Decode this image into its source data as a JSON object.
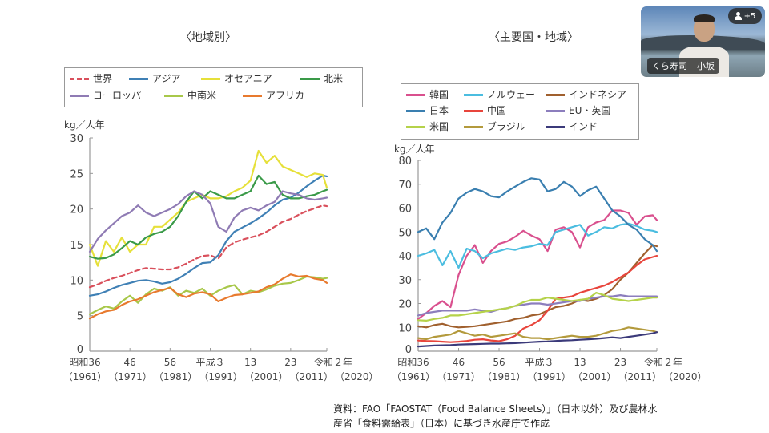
{
  "slide": {
    "source_note_line1": "資料：FAO「FAOSTAT（Food Balance Sheets）」（日本以外）及び農林水",
    "source_note_line2": "産省「食料需給表」（日本）に基づき水産庁で作成"
  },
  "video_call": {
    "participant_name_org": "くら寿司",
    "participant_name_person": "小坂",
    "participants_badge": "+5",
    "participants_icon": "user-icon"
  },
  "chart_data": [
    {
      "type": "line",
      "title": "〈地域別〉",
      "ylabel": "kg／人年",
      "xlabel": "",
      "ylim": [
        0,
        30
      ],
      "yticks": [
        0,
        5,
        10,
        15,
        20,
        25,
        30
      ],
      "xlim": [
        1961,
        2020
      ],
      "xticks": [
        {
          "year": 1961,
          "label1": "昭和36",
          "label2": "（1961）"
        },
        {
          "year": 1971,
          "label1": "46",
          "label2": "（1971）"
        },
        {
          "year": 1981,
          "label1": "56",
          "label2": "（1981）"
        },
        {
          "year": 1991,
          "label1": "平成３",
          "label2": "（1991）"
        },
        {
          "year": 2001,
          "label1": "13",
          "label2": "（2001）"
        },
        {
          "year": 2011,
          "label1": "23",
          "label2": "（2011）"
        },
        {
          "year": 2020,
          "label1": "令和２年",
          "label2": "（2020）"
        }
      ],
      "grid": false,
      "legend_position": "top",
      "x": [
        1961,
        1963,
        1965,
        1967,
        1969,
        1971,
        1973,
        1975,
        1977,
        1979,
        1981,
        1983,
        1985,
        1987,
        1989,
        1991,
        1993,
        1995,
        1997,
        1999,
        2001,
        2003,
        2005,
        2007,
        2009,
        2011,
        2013,
        2015,
        2017,
        2019,
        2020
      ],
      "series": [
        {
          "name": "世界",
          "color": "#d9505c",
          "dashed": true,
          "values": [
            9.0,
            9.4,
            9.9,
            10.3,
            10.6,
            11.0,
            11.4,
            11.7,
            11.6,
            11.5,
            11.5,
            11.8,
            12.3,
            12.9,
            13.4,
            13.5,
            13.0,
            14.6,
            15.3,
            15.7,
            16.0,
            16.3,
            16.8,
            17.5,
            18.2,
            18.6,
            19.2,
            19.7,
            20.1,
            20.5,
            20.4
          ]
        },
        {
          "name": "アジア",
          "color": "#3f80b5",
          "values": [
            7.8,
            8.0,
            8.4,
            8.9,
            9.3,
            9.6,
            9.9,
            10.0,
            9.8,
            9.5,
            9.7,
            10.2,
            10.9,
            11.7,
            12.4,
            12.5,
            13.5,
            15.5,
            16.8,
            17.4,
            18.0,
            18.7,
            19.5,
            20.5,
            21.3,
            21.6,
            22.3,
            23.2,
            24.0,
            24.7,
            24.6
          ]
        },
        {
          "name": "オセアニア",
          "color": "#e6e03a",
          "values": [
            15.0,
            12.0,
            15.5,
            14.0,
            16.0,
            14.0,
            15.0,
            15.0,
            17.5,
            17.5,
            18.5,
            19.5,
            21.0,
            21.5,
            22.0,
            21.5,
            21.5,
            21.8,
            22.5,
            23.0,
            24.0,
            28.2,
            26.5,
            27.5,
            26.0,
            25.5,
            25.0,
            24.5,
            25.0,
            24.8,
            23.0
          ]
        },
        {
          "name": "北米",
          "color": "#3a9a48",
          "values": [
            13.3,
            13.0,
            13.1,
            13.6,
            14.5,
            15.5,
            15.0,
            16.0,
            16.5,
            16.8,
            17.5,
            19.0,
            21.0,
            22.5,
            21.5,
            22.5,
            22.0,
            21.5,
            21.5,
            22.0,
            22.5,
            24.7,
            23.5,
            23.8,
            22.0,
            21.5,
            21.5,
            21.8,
            22.0,
            22.5,
            22.7
          ]
        },
        {
          "name": "ヨーロッパ",
          "color": "#8f7bb4",
          "values": [
            14.0,
            15.8,
            17.0,
            18.0,
            19.0,
            19.5,
            20.5,
            19.5,
            19.0,
            19.5,
            20.0,
            20.7,
            21.8,
            22.5,
            22.0,
            20.8,
            17.5,
            16.8,
            18.8,
            19.8,
            20.2,
            19.8,
            20.5,
            21.0,
            22.5,
            22.2,
            22.0,
            21.5,
            21.3,
            21.5,
            21.6
          ]
        },
        {
          "name": "中南米",
          "color": "#a8c84a",
          "values": [
            5.2,
            5.8,
            6.3,
            6.0,
            7.0,
            7.8,
            6.8,
            8.0,
            8.8,
            8.5,
            9.0,
            7.8,
            8.5,
            8.2,
            8.8,
            7.8,
            8.5,
            9.0,
            9.3,
            8.0,
            8.5,
            8.3,
            8.7,
            9.2,
            9.5,
            9.6,
            10.0,
            10.5,
            10.4,
            10.2,
            10.3
          ]
        },
        {
          "name": "アフリカ",
          "color": "#e87a2e",
          "values": [
            4.6,
            5.2,
            5.6,
            5.8,
            6.5,
            7.0,
            7.3,
            7.8,
            8.3,
            8.6,
            8.9,
            8.0,
            7.6,
            8.1,
            8.3,
            8.0,
            7.0,
            7.5,
            7.9,
            8.0,
            8.2,
            8.4,
            9.0,
            9.4,
            10.2,
            10.8,
            10.5,
            10.6,
            10.2,
            10.0,
            9.6
          ]
        }
      ]
    },
    {
      "type": "line",
      "title": "〈主要国・地域〉",
      "ylabel": "kg／人年",
      "xlabel": "",
      "ylim": [
        0,
        80
      ],
      "yticks": [
        0,
        10,
        20,
        30,
        40,
        50,
        60,
        70,
        80
      ],
      "xlim": [
        1961,
        2020
      ],
      "xticks": [
        {
          "year": 1961,
          "label1": "昭和36",
          "label2": "（1961）"
        },
        {
          "year": 1971,
          "label1": "46",
          "label2": "（1971）"
        },
        {
          "year": 1981,
          "label1": "56",
          "label2": "（1981）"
        },
        {
          "year": 1991,
          "label1": "平成３",
          "label2": "（1991）"
        },
        {
          "year": 2001,
          "label1": "13",
          "label2": "（2001）"
        },
        {
          "year": 2011,
          "label1": "23",
          "label2": "（2011）"
        },
        {
          "year": 2020,
          "label1": "令和２年",
          "label2": "（2020）"
        }
      ],
      "grid": false,
      "legend_position": "top",
      "x": [
        1961,
        1963,
        1965,
        1967,
        1969,
        1971,
        1973,
        1975,
        1977,
        1979,
        1981,
        1983,
        1985,
        1987,
        1989,
        1991,
        1993,
        1995,
        1997,
        1999,
        2001,
        2003,
        2005,
        2007,
        2009,
        2011,
        2013,
        2015,
        2017,
        2019,
        2020
      ],
      "series": [
        {
          "name": "韓国",
          "color": "#d9508e",
          "values": [
            13.5,
            16.0,
            19.0,
            21.0,
            18.5,
            32.0,
            40.0,
            44.5,
            37.0,
            42.0,
            45.0,
            46.0,
            48.0,
            50.5,
            48.5,
            47.0,
            42.0,
            51.0,
            52.0,
            50.0,
            43.5,
            52.0,
            54.0,
            55.0,
            59.0,
            59.0,
            58.0,
            53.0,
            56.5,
            57.0,
            55.0
          ]
        },
        {
          "name": "ノルウェー",
          "color": "#4bbde0",
          "values": [
            40.0,
            41.0,
            42.5,
            36.0,
            42.0,
            35.0,
            43.0,
            42.0,
            39.0,
            41.0,
            42.0,
            43.0,
            42.5,
            43.5,
            44.0,
            45.0,
            44.5,
            50.0,
            51.0,
            52.0,
            53.0,
            48.5,
            50.0,
            52.0,
            51.5,
            53.0,
            53.5,
            52.5,
            51.0,
            50.5,
            50.0
          ]
        },
        {
          "name": "インドネシア",
          "color": "#a0602e",
          "values": [
            10.5,
            10.0,
            11.0,
            11.5,
            10.5,
            10.0,
            10.2,
            10.5,
            11.0,
            11.5,
            12.0,
            12.5,
            13.5,
            14.0,
            15.0,
            15.5,
            17.0,
            18.5,
            19.0,
            20.0,
            21.5,
            21.0,
            22.0,
            23.5,
            26.0,
            30.0,
            33.0,
            37.0,
            41.0,
            44.5,
            44.0
          ]
        },
        {
          "name": "日本",
          "color": "#3a7fb0",
          "values": [
            50.0,
            51.5,
            47.0,
            54.0,
            58.0,
            64.0,
            66.5,
            68.0,
            67.0,
            65.0,
            64.5,
            67.0,
            69.0,
            71.0,
            72.5,
            72.0,
            67.0,
            68.0,
            71.0,
            69.0,
            65.0,
            67.5,
            69.0,
            64.0,
            59.0,
            56.5,
            53.0,
            51.0,
            47.0,
            44.5,
            42.0
          ]
        },
        {
          "name": "中国",
          "color": "#e8453c",
          "values": [
            4.5,
            4.3,
            4.2,
            4.0,
            3.8,
            4.0,
            4.3,
            4.8,
            5.0,
            4.5,
            4.2,
            5.0,
            6.5,
            9.5,
            11.0,
            13.0,
            17.0,
            22.0,
            22.5,
            23.0,
            24.5,
            25.5,
            26.5,
            27.5,
            29.0,
            31.0,
            33.0,
            36.0,
            38.5,
            39.5,
            40.0
          ]
        },
        {
          "name": "EU・英国",
          "color": "#8c7ebd",
          "values": [
            15.0,
            16.0,
            16.5,
            17.0,
            17.0,
            17.0,
            17.0,
            17.5,
            17.0,
            16.5,
            17.5,
            18.0,
            19.0,
            19.5,
            20.0,
            20.0,
            19.5,
            20.0,
            20.5,
            21.0,
            21.0,
            22.0,
            22.5,
            23.0,
            23.0,
            23.5,
            23.0,
            23.0,
            23.0,
            23.0,
            23.0
          ]
        },
        {
          "name": "米国",
          "color": "#b5d24a",
          "values": [
            13.0,
            12.8,
            13.5,
            14.0,
            15.0,
            15.0,
            15.5,
            16.0,
            16.5,
            17.0,
            17.5,
            18.0,
            19.0,
            20.5,
            21.5,
            21.5,
            22.5,
            22.0,
            21.5,
            21.0,
            21.5,
            22.0,
            24.5,
            23.5,
            22.0,
            21.5,
            21.0,
            21.5,
            22.0,
            22.5,
            22.5
          ]
        },
        {
          "name": "ブラジル",
          "color": "#b39a3c",
          "values": [
            5.5,
            5.0,
            6.0,
            6.5,
            7.0,
            8.5,
            7.5,
            6.5,
            7.0,
            6.0,
            6.5,
            7.0,
            7.5,
            6.0,
            5.5,
            5.5,
            5.0,
            5.5,
            6.0,
            6.5,
            6.0,
            6.0,
            6.5,
            7.5,
            8.5,
            9.0,
            10.0,
            9.5,
            9.0,
            8.5,
            8.0
          ]
        },
        {
          "name": "インド",
          "color": "#3b3a7a",
          "values": [
            2.0,
            2.2,
            2.4,
            2.5,
            2.6,
            2.8,
            2.9,
            3.0,
            3.1,
            3.2,
            3.2,
            3.3,
            3.4,
            3.6,
            3.8,
            4.0,
            4.1,
            4.3,
            4.5,
            4.6,
            4.8,
            5.0,
            5.2,
            5.5,
            5.8,
            5.5,
            6.0,
            6.5,
            7.0,
            7.5,
            8.0
          ]
        }
      ]
    }
  ]
}
